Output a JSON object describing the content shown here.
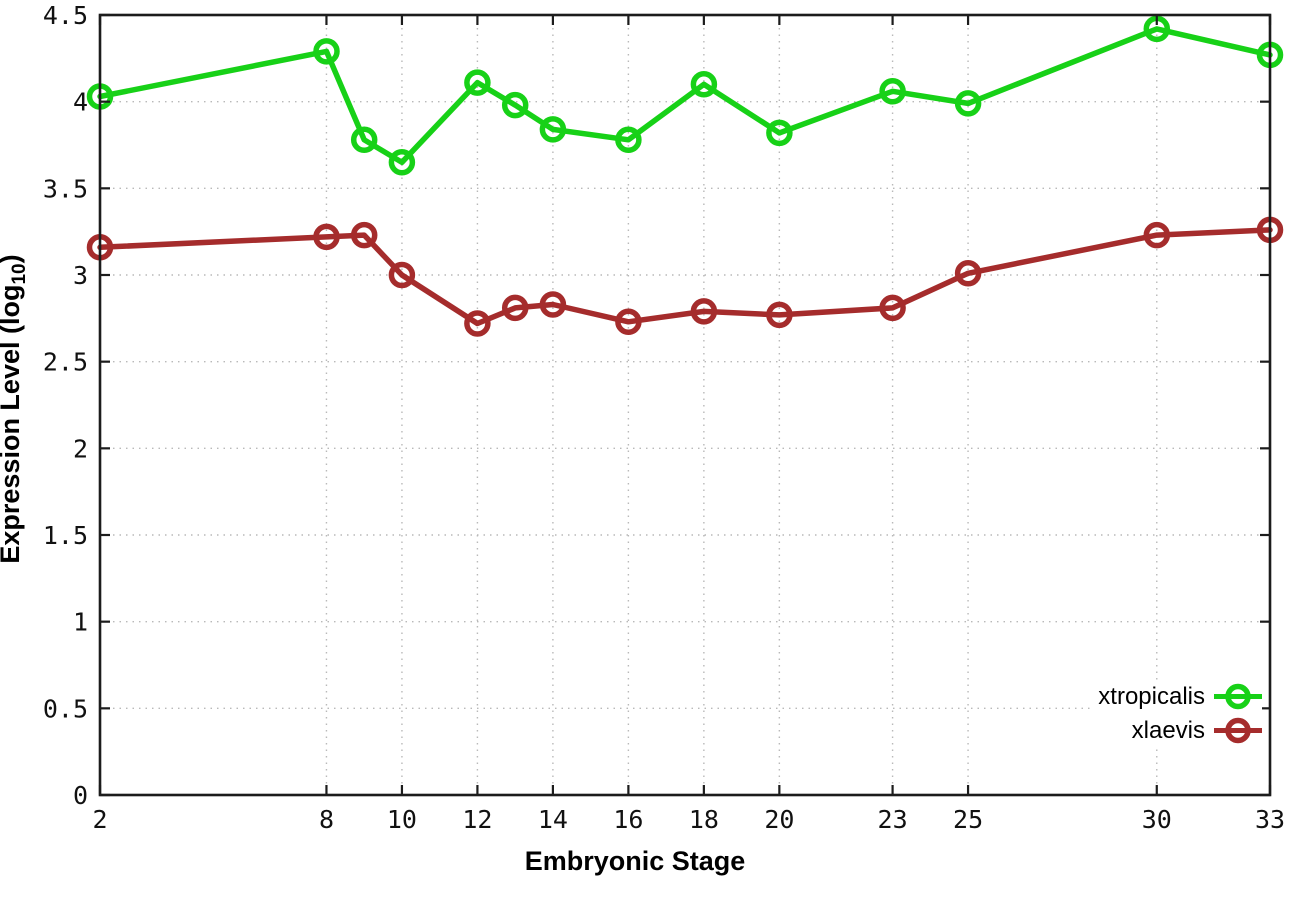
{
  "figure": {
    "xlabel": "Embryonic Stage",
    "ylabel_full": "Expression Level (log10)",
    "ylabel_prefix": "Expression Level (log",
    "ylabel_sub": "10",
    "ylabel_suffix": ")"
  },
  "style": {
    "background": "#ffffff",
    "axis_color": "#1c1c1c",
    "grid_color": "#b9b9b9",
    "tick_label_color": "#111111"
  },
  "chart_data": {
    "type": "line",
    "title": "",
    "xlabel": "Embryonic Stage",
    "ylabel": "Expression Level (log10)",
    "x": [
      2,
      8,
      9,
      10,
      12,
      13,
      14,
      16,
      18,
      20,
      23,
      25,
      30,
      33
    ],
    "series": [
      {
        "name": "xtropicalis",
        "color": "#17d117",
        "values": [
          4.03,
          4.29,
          3.78,
          3.65,
          4.11,
          3.98,
          3.84,
          3.78,
          4.1,
          3.82,
          4.06,
          3.99,
          4.42,
          4.27
        ]
      },
      {
        "name": "xlaevis",
        "color": "#a52c2c",
        "values": [
          3.16,
          3.22,
          3.23,
          3.0,
          2.72,
          2.81,
          2.83,
          2.73,
          2.79,
          2.77,
          2.81,
          3.01,
          3.23,
          3.26
        ]
      }
    ],
    "xlim": [
      2,
      33
    ],
    "ylim": [
      0,
      4.5
    ],
    "xticks": [
      2,
      8,
      10,
      12,
      14,
      16,
      18,
      20,
      23,
      25,
      30,
      33
    ],
    "yticks": [
      0,
      0.5,
      1,
      1.5,
      2,
      2.5,
      3,
      3.5,
      4,
      4.5
    ],
    "grid": true,
    "grid_style": "dotted",
    "marker": "open-circle",
    "legend_position": "bottom-right"
  }
}
